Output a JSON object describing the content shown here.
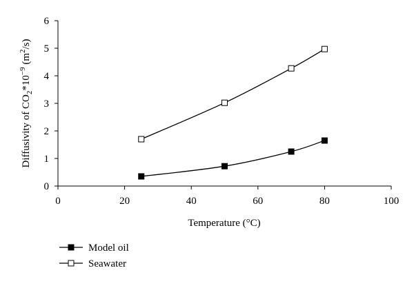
{
  "chart_data": {
    "type": "line",
    "xlabel": "Temperature (°C)",
    "ylabel": {
      "prefix": "Diffusivity of CO",
      "sub": "2",
      "mid": "*10",
      "sup": "−9",
      "unit_open": " (m",
      "unit_sup": "2",
      "unit_close": "/s)"
    },
    "xlim": [
      0,
      100
    ],
    "ylim": [
      0,
      6
    ],
    "xticks": [
      0,
      20,
      40,
      60,
      80,
      100
    ],
    "yticks": [
      0,
      1,
      2,
      3,
      4,
      5,
      6
    ],
    "grid": false,
    "legend_position": "bottom-left",
    "series": [
      {
        "name": "Model oil",
        "marker": "filled-square",
        "color": "#000000",
        "x": [
          25,
          50,
          70,
          80
        ],
        "y": [
          0.35,
          0.72,
          1.25,
          1.65
        ]
      },
      {
        "name": "Seawater",
        "marker": "open-square",
        "color": "#000000",
        "x": [
          25,
          50,
          70,
          80
        ],
        "y": [
          1.7,
          3.02,
          4.27,
          4.97
        ]
      }
    ]
  }
}
